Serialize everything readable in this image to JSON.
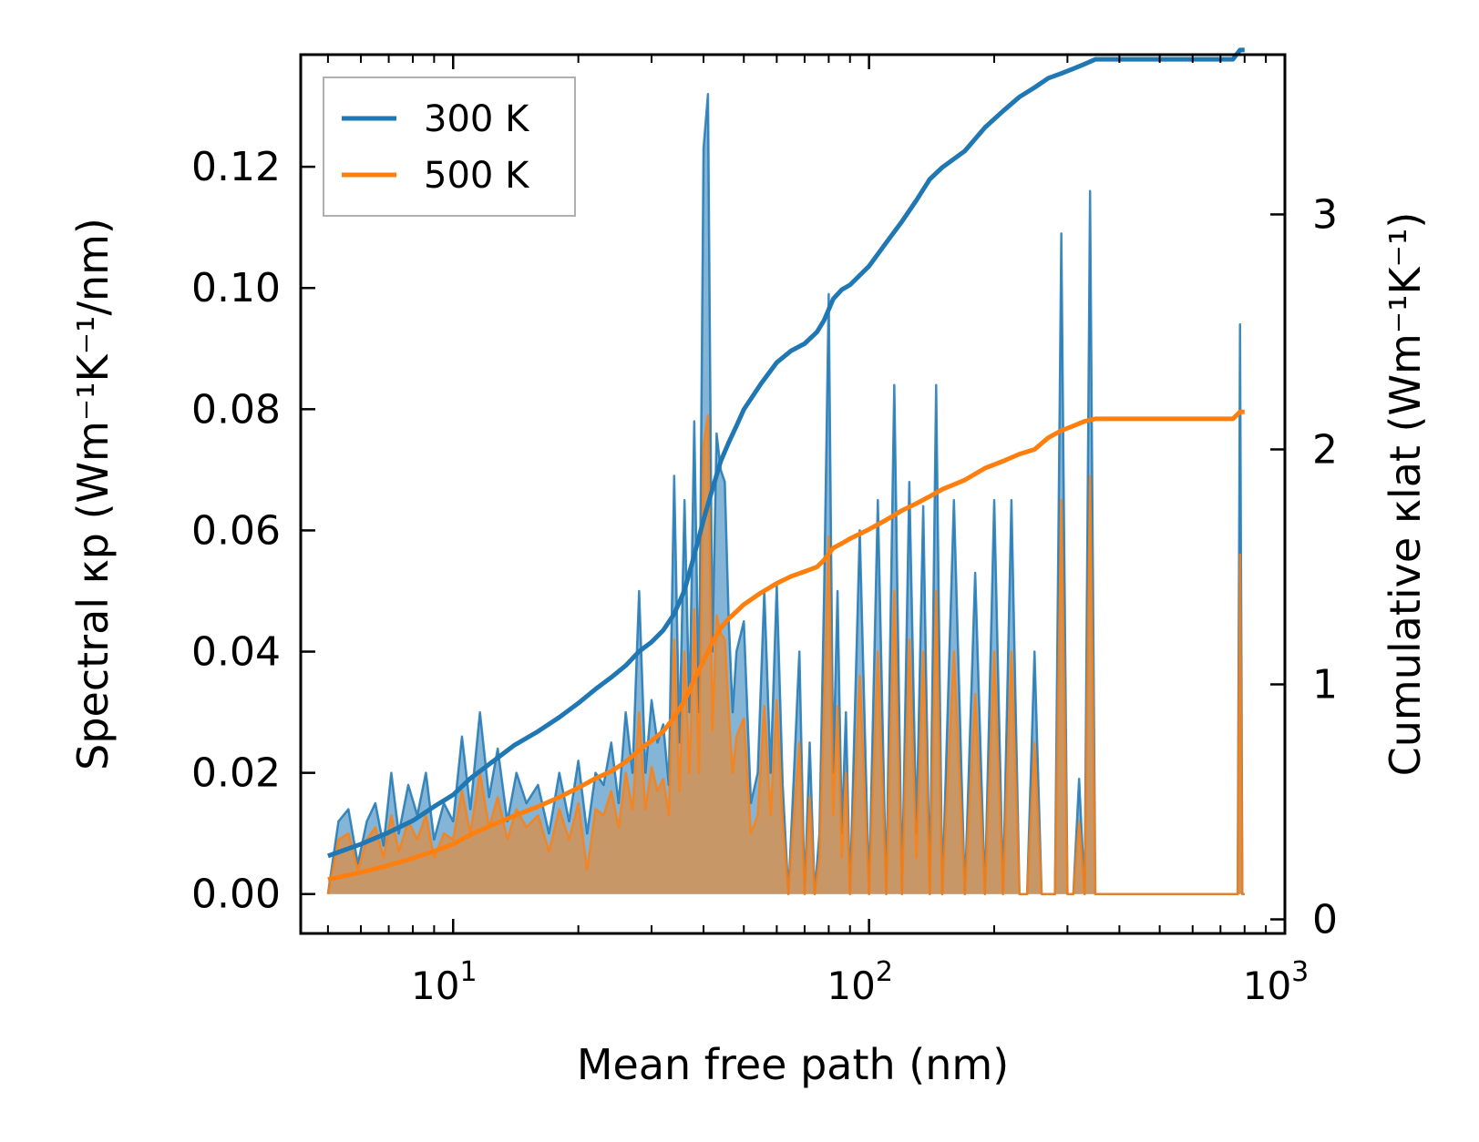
{
  "chart_data": {
    "type": "line",
    "xscale": "log",
    "xlabel": "Mean free path (nm)",
    "ylabel_left": "Spectral κp (Wm⁻¹K⁻¹/nm)",
    "ylabel_right": "Cumulative κlat (Wm⁻¹K⁻¹)",
    "xlim": [
      4.3,
      1000
    ],
    "ylim_left": [
      -0.0065,
      0.1385
    ],
    "ylim_right": [
      -0.06,
      3.68
    ],
    "x_ticks": [
      {
        "value": 10,
        "base": "10",
        "exp": "1"
      },
      {
        "value": 100,
        "base": "10",
        "exp": "2"
      },
      {
        "value": 1000,
        "base": "10",
        "exp": "3"
      }
    ],
    "y_ticks_left": [
      {
        "value": 0.0,
        "label": "0.00"
      },
      {
        "value": 0.02,
        "label": "0.02"
      },
      {
        "value": 0.04,
        "label": "0.04"
      },
      {
        "value": 0.06,
        "label": "0.06"
      },
      {
        "value": 0.08,
        "label": "0.08"
      },
      {
        "value": 0.1,
        "label": "0.10"
      },
      {
        "value": 0.12,
        "label": "0.12"
      }
    ],
    "y_ticks_right": [
      {
        "value": 0,
        "label": "0"
      },
      {
        "value": 1,
        "label": "1"
      },
      {
        "value": 2,
        "label": "2"
      },
      {
        "value": 3,
        "label": "3"
      }
    ],
    "legend": [
      {
        "name": "300 K",
        "color": "#1f77b4"
      },
      {
        "name": "500 K",
        "color": "#ff7f0e"
      }
    ],
    "series": [
      {
        "name": "300 K spectral",
        "axis": "left",
        "color": "#1f77b4",
        "x": [
          5.0,
          5.3,
          5.6,
          5.9,
          6.2,
          6.5,
          6.8,
          7.1,
          7.4,
          7.8,
          8.2,
          8.6,
          9.0,
          9.5,
          10.0,
          10.5,
          11.0,
          11.6,
          12.2,
          12.8,
          13.5,
          14.2,
          15.0,
          16.0,
          17.0,
          18.0,
          19.0,
          20.0,
          21.0,
          22.0,
          23.0,
          24.0,
          25.0,
          26.0,
          27.0,
          28.0,
          29.0,
          30.0,
          31.0,
          32.0,
          33.0,
          34.0,
          35.0,
          36.0,
          37.0,
          38.0,
          39.0,
          40.0,
          41.0,
          42.0,
          43.0,
          44.0,
          45.0,
          46.0,
          47.0,
          48.0,
          50.0,
          52.0,
          54.0,
          56.0,
          58.0,
          60.0,
          62.0,
          64.0,
          66.0,
          68.0,
          70.0,
          72.0,
          74.0,
          76.0,
          78.0,
          80.0,
          82.0,
          84.0,
          86.0,
          88.0,
          90.0,
          95.0,
          100.0,
          105.0,
          110.0,
          115.0,
          120.0,
          125.0,
          130.0,
          135.0,
          140.0,
          145.0,
          150.0,
          160.0,
          170.0,
          180.0,
          190.0,
          200.0,
          210.0,
          220.0,
          230.0,
          240.0,
          250.0,
          260.0,
          270.0,
          280.0,
          290.0,
          300.0,
          310.0,
          320.0,
          330.0,
          340.0,
          350.0,
          400.0,
          500.0,
          600.0,
          700.0,
          750.0,
          770.0,
          780.0,
          790.0,
          800.0
        ],
        "values": [
          0.0,
          0.012,
          0.014,
          0.005,
          0.012,
          0.015,
          0.008,
          0.02,
          0.01,
          0.018,
          0.013,
          0.02,
          0.009,
          0.015,
          0.012,
          0.026,
          0.014,
          0.03,
          0.016,
          0.024,
          0.012,
          0.02,
          0.015,
          0.018,
          0.01,
          0.02,
          0.012,
          0.022,
          0.01,
          0.02,
          0.018,
          0.025,
          0.015,
          0.03,
          0.02,
          0.05,
          0.02,
          0.032,
          0.025,
          0.028,
          0.018,
          0.069,
          0.025,
          0.065,
          0.03,
          0.078,
          0.03,
          0.123,
          0.132,
          0.04,
          0.076,
          0.07,
          0.068,
          0.045,
          0.03,
          0.04,
          0.045,
          0.015,
          0.02,
          0.05,
          0.02,
          0.051,
          0.018,
          0.0,
          0.02,
          0.04,
          0.0,
          0.025,
          0.0,
          0.01,
          0.05,
          0.099,
          0.02,
          0.05,
          0.01,
          0.03,
          0.0,
          0.06,
          0.0,
          0.065,
          0.0,
          0.084,
          0.0,
          0.068,
          0.01,
          0.064,
          0.0,
          0.084,
          0.0,
          0.065,
          0.0,
          0.053,
          0.0,
          0.065,
          0.0,
          0.065,
          0.0,
          0.0,
          0.04,
          0.0,
          0.0,
          0.0,
          0.109,
          0.0,
          0.0,
          0.019,
          0.0,
          0.116,
          0.0,
          0.0,
          0.0,
          0.0,
          0.0,
          0.0,
          0.0,
          0.094,
          0.0,
          0.0
        ]
      },
      {
        "name": "500 K spectral",
        "axis": "left",
        "color": "#ff7f0e",
        "x": [
          5.0,
          5.3,
          5.6,
          5.9,
          6.2,
          6.5,
          6.8,
          7.1,
          7.4,
          7.8,
          8.2,
          8.6,
          9.0,
          9.5,
          10.0,
          10.5,
          11.0,
          11.6,
          12.2,
          12.8,
          13.5,
          14.2,
          15.0,
          16.0,
          17.0,
          18.0,
          19.0,
          20.0,
          21.0,
          22.0,
          23.0,
          24.0,
          25.0,
          26.0,
          27.0,
          28.0,
          29.0,
          30.0,
          31.0,
          32.0,
          33.0,
          34.0,
          35.0,
          36.0,
          37.0,
          38.0,
          39.0,
          40.0,
          41.0,
          42.0,
          43.0,
          44.0,
          45.0,
          46.0,
          47.0,
          48.0,
          50.0,
          52.0,
          54.0,
          56.0,
          58.0,
          60.0,
          62.0,
          64.0,
          66.0,
          68.0,
          70.0,
          72.0,
          74.0,
          76.0,
          78.0,
          80.0,
          82.0,
          84.0,
          86.0,
          88.0,
          90.0,
          95.0,
          100.0,
          105.0,
          110.0,
          115.0,
          120.0,
          125.0,
          130.0,
          135.0,
          140.0,
          145.0,
          150.0,
          160.0,
          170.0,
          180.0,
          190.0,
          200.0,
          210.0,
          220.0,
          230.0,
          240.0,
          250.0,
          260.0,
          270.0,
          280.0,
          290.0,
          300.0,
          310.0,
          320.0,
          330.0,
          340.0,
          350.0,
          400.0,
          500.0,
          600.0,
          700.0,
          750.0,
          770.0,
          780.0,
          790.0,
          800.0
        ],
        "values": [
          0.0,
          0.009,
          0.01,
          0.004,
          0.009,
          0.011,
          0.006,
          0.013,
          0.007,
          0.012,
          0.009,
          0.013,
          0.006,
          0.01,
          0.009,
          0.017,
          0.01,
          0.02,
          0.011,
          0.016,
          0.009,
          0.014,
          0.011,
          0.013,
          0.007,
          0.014,
          0.009,
          0.015,
          0.004,
          0.014,
          0.013,
          0.017,
          0.011,
          0.02,
          0.014,
          0.03,
          0.014,
          0.021,
          0.017,
          0.019,
          0.013,
          0.042,
          0.017,
          0.04,
          0.02,
          0.047,
          0.02,
          0.074,
          0.079,
          0.027,
          0.046,
          0.043,
          0.042,
          0.03,
          0.02,
          0.026,
          0.029,
          0.01,
          0.013,
          0.031,
          0.013,
          0.032,
          0.012,
          0.0,
          0.013,
          0.025,
          0.0,
          0.016,
          0.0,
          0.006,
          0.032,
          0.059,
          0.013,
          0.031,
          0.006,
          0.02,
          0.0,
          0.036,
          0.0,
          0.04,
          0.0,
          0.05,
          0.0,
          0.042,
          0.006,
          0.04,
          0.0,
          0.05,
          0.0,
          0.04,
          0.0,
          0.033,
          0.0,
          0.04,
          0.0,
          0.04,
          0.0,
          0.0,
          0.025,
          0.0,
          0.0,
          0.0,
          0.065,
          0.0,
          0.0,
          0.012,
          0.0,
          0.069,
          0.0,
          0.0,
          0.0,
          0.0,
          0.0,
          0.0,
          0.0,
          0.056,
          0.0,
          0.0
        ]
      },
      {
        "name": "300 K cumulative",
        "axis": "right",
        "color": "#1f77b4",
        "x": [
          5.0,
          6.0,
          7.0,
          8.0,
          9.0,
          10.0,
          11.0,
          12.0,
          14.0,
          16.0,
          18.0,
          20.0,
          22.0,
          24.0,
          26.0,
          28.0,
          30.0,
          32.0,
          34.0,
          36.0,
          38.0,
          40.0,
          42.0,
          44.0,
          46.0,
          48.0,
          50.0,
          55.0,
          60.0,
          65.0,
          70.0,
          75.0,
          78.0,
          82.0,
          86.0,
          90.0,
          100.0,
          110.0,
          120.0,
          130.0,
          140.0,
          150.0,
          170.0,
          190.0,
          210.0,
          230.0,
          250.0,
          270.0,
          290.0,
          310.0,
          330.0,
          350.0,
          500.0,
          700.0,
          750.0,
          780.0,
          800.0
        ],
        "values": [
          0.27,
          0.32,
          0.37,
          0.42,
          0.48,
          0.53,
          0.6,
          0.65,
          0.74,
          0.8,
          0.86,
          0.92,
          0.98,
          1.03,
          1.08,
          1.14,
          1.18,
          1.23,
          1.3,
          1.4,
          1.55,
          1.7,
          1.83,
          1.95,
          2.03,
          2.1,
          2.17,
          2.28,
          2.37,
          2.42,
          2.45,
          2.5,
          2.55,
          2.64,
          2.68,
          2.7,
          2.78,
          2.88,
          2.97,
          3.06,
          3.15,
          3.2,
          3.27,
          3.37,
          3.44,
          3.5,
          3.54,
          3.58,
          3.6,
          3.62,
          3.64,
          3.66,
          3.66,
          3.66,
          3.66,
          3.7,
          3.7
        ]
      },
      {
        "name": "500 K cumulative",
        "axis": "right",
        "color": "#ff7f0e",
        "x": [
          5.0,
          6.0,
          7.0,
          8.0,
          9.0,
          10.0,
          11.0,
          12.0,
          14.0,
          16.0,
          18.0,
          20.0,
          22.0,
          24.0,
          26.0,
          28.0,
          30.0,
          32.0,
          34.0,
          36.0,
          38.0,
          40.0,
          42.0,
          44.0,
          46.0,
          48.0,
          50.0,
          55.0,
          60.0,
          65.0,
          70.0,
          75.0,
          78.0,
          82.0,
          86.0,
          90.0,
          100.0,
          110.0,
          120.0,
          130.0,
          140.0,
          150.0,
          170.0,
          190.0,
          210.0,
          230.0,
          250.0,
          270.0,
          290.0,
          310.0,
          330.0,
          350.0,
          500.0,
          700.0,
          750.0,
          780.0,
          800.0
        ],
        "values": [
          0.17,
          0.2,
          0.23,
          0.26,
          0.29,
          0.32,
          0.36,
          0.39,
          0.44,
          0.48,
          0.52,
          0.56,
          0.6,
          0.63,
          0.67,
          0.72,
          0.76,
          0.8,
          0.86,
          0.93,
          1.02,
          1.1,
          1.18,
          1.24,
          1.28,
          1.31,
          1.34,
          1.39,
          1.43,
          1.46,
          1.48,
          1.5,
          1.53,
          1.58,
          1.6,
          1.62,
          1.66,
          1.7,
          1.74,
          1.77,
          1.8,
          1.83,
          1.87,
          1.92,
          1.95,
          1.98,
          2.0,
          2.05,
          2.08,
          2.1,
          2.12,
          2.13,
          2.13,
          2.13,
          2.13,
          2.16,
          2.16
        ]
      }
    ]
  }
}
